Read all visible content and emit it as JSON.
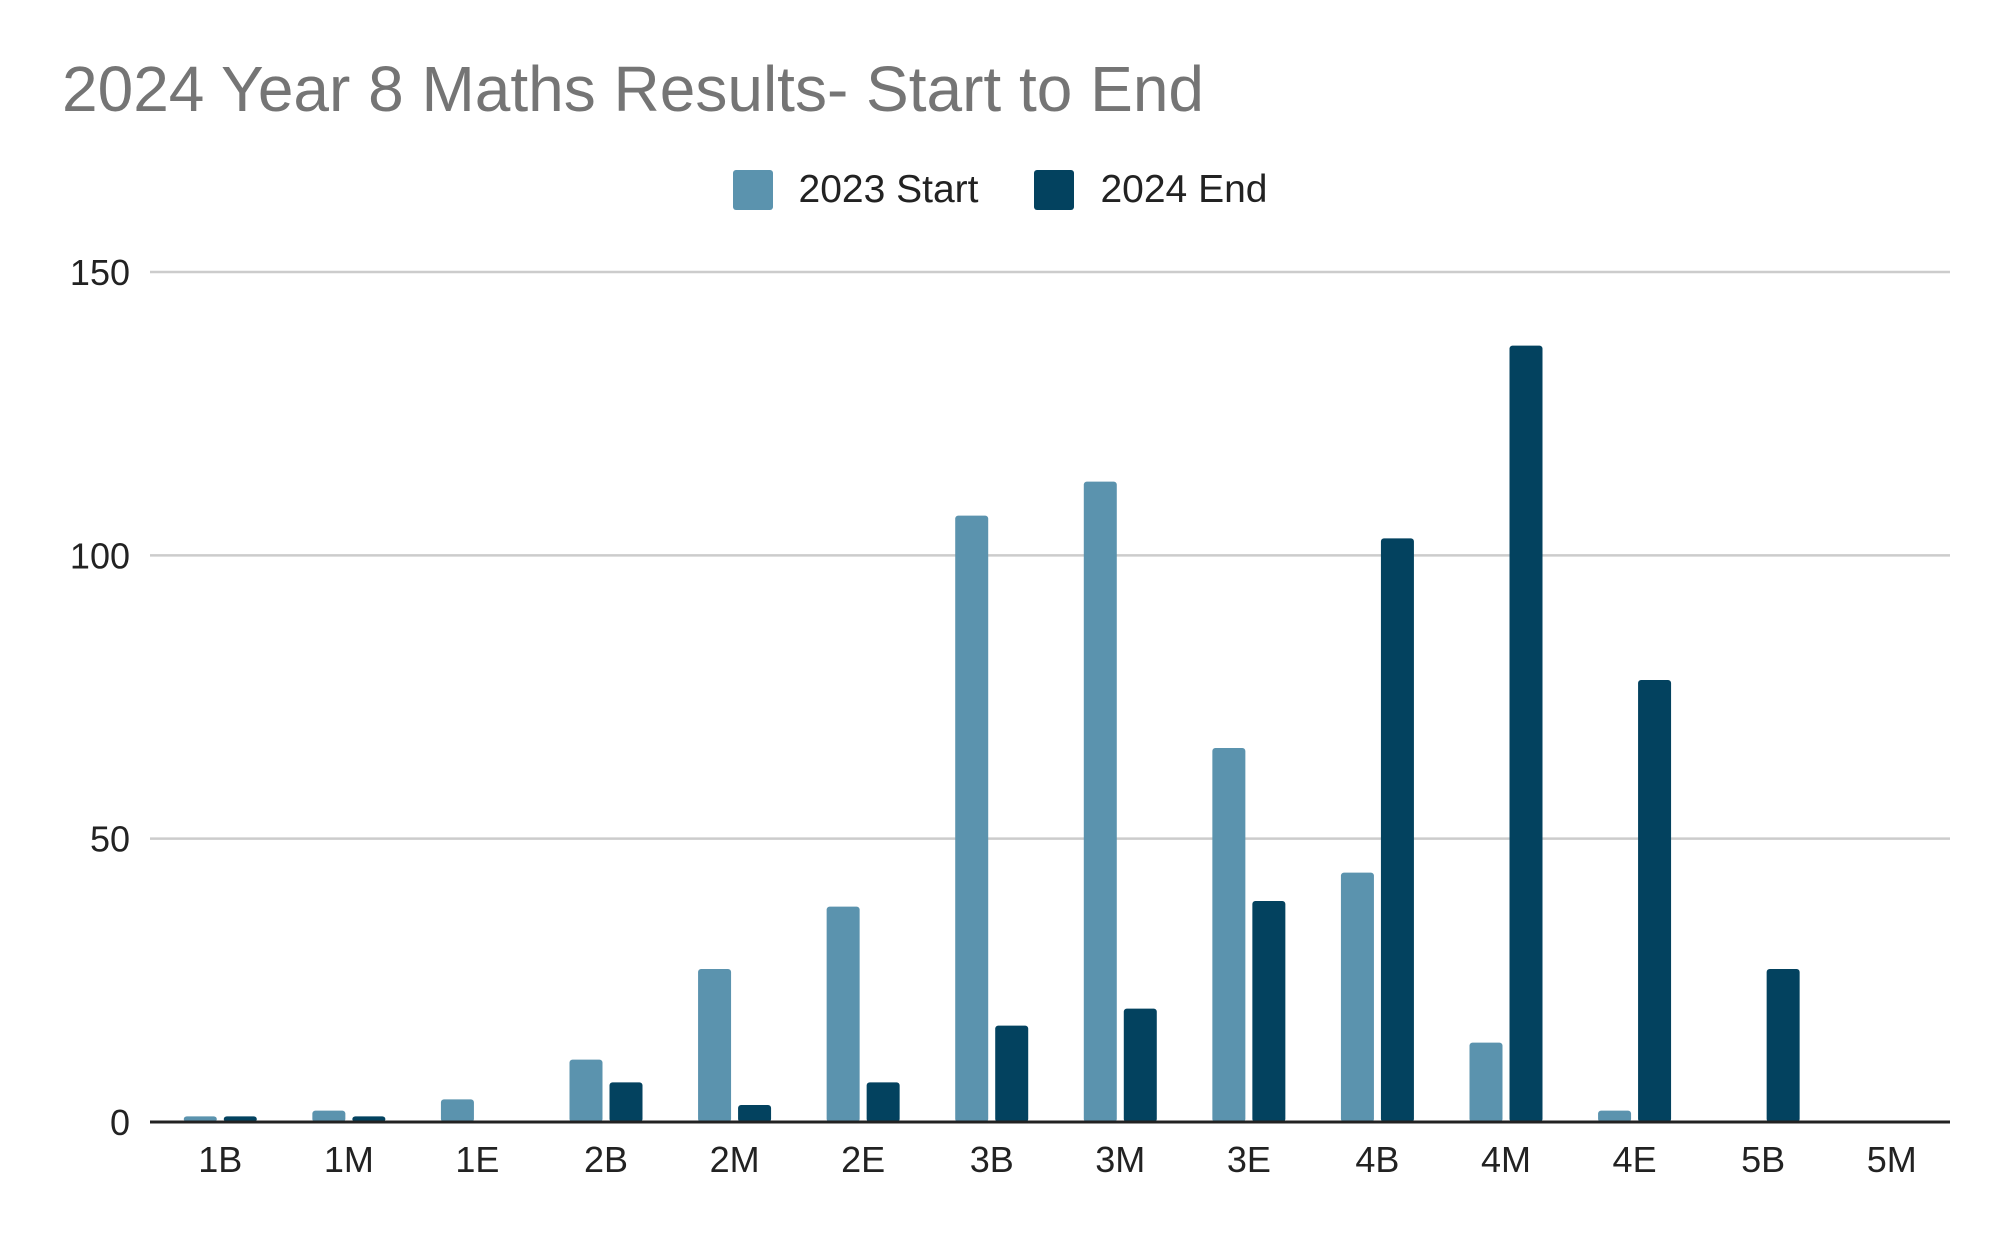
{
  "chart_data": {
    "type": "bar",
    "title": "2024 Year 8 Maths Results- Start to End",
    "xlabel": "",
    "ylabel": "",
    "categories": [
      "1B",
      "1M",
      "1E",
      "2B",
      "2M",
      "2E",
      "3B",
      "3M",
      "3E",
      "4B",
      "4M",
      "4E",
      "5B",
      "5M"
    ],
    "series": [
      {
        "name": "2023 Start",
        "color": "#5b93ae",
        "values": [
          1,
          2,
          4,
          11,
          27,
          38,
          107,
          113,
          66,
          44,
          14,
          2,
          0,
          0
        ]
      },
      {
        "name": "2024 End",
        "color": "#03425f",
        "values": [
          1,
          1,
          0,
          7,
          3,
          7,
          17,
          20,
          39,
          103,
          137,
          78,
          27,
          0
        ]
      }
    ],
    "yticks": [
      "0",
      "50",
      "100",
      "150"
    ],
    "ylim": [
      0,
      150
    ],
    "grid": true,
    "legend_position": "top-center"
  }
}
